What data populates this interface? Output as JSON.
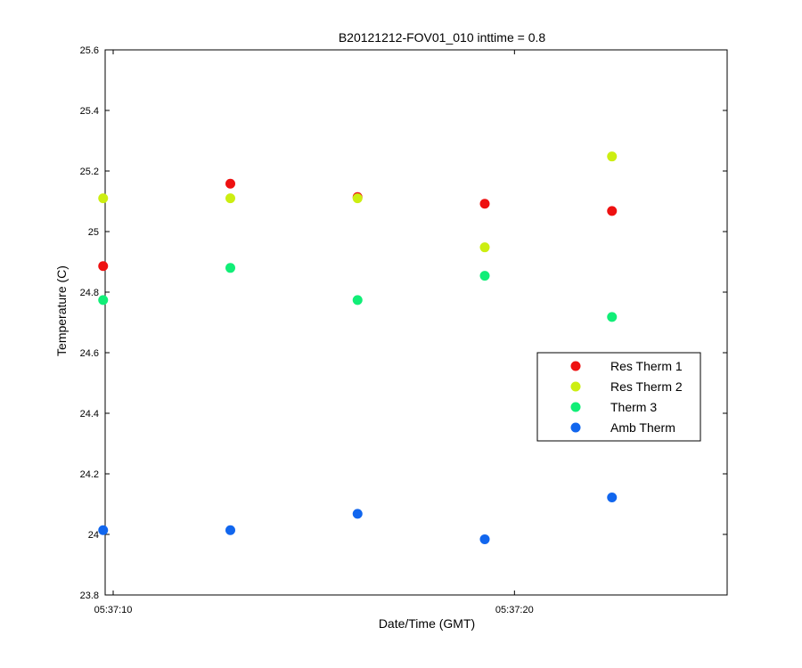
{
  "chart_data": {
    "type": "scatter",
    "title": "B20121212-FOV01_010 inttime = 0.8",
    "xlabel": "Date/Time (GMT)",
    "ylabel": "Temperature (C)",
    "x_unit": "seconds after 05:37:00",
    "xlim": [
      9.8,
      25.3
    ],
    "ylim": [
      23.8,
      25.6
    ],
    "x_ticks": [
      {
        "value": 10,
        "label": "05:37:10"
      },
      {
        "value": 20,
        "label": "05:37:20"
      }
    ],
    "y_ticks": [
      {
        "value": 23.8,
        "label": "23.8"
      },
      {
        "value": 24.0,
        "label": "24"
      },
      {
        "value": 24.2,
        "label": "24.2"
      },
      {
        "value": 24.4,
        "label": "24.4"
      },
      {
        "value": 24.6,
        "label": "24.6"
      },
      {
        "value": 24.8,
        "label": "24.8"
      },
      {
        "value": 25.0,
        "label": "25"
      },
      {
        "value": 25.2,
        "label": "25.2"
      },
      {
        "value": 25.4,
        "label": "25.4"
      },
      {
        "value": 25.6,
        "label": "25.6"
      }
    ],
    "grid": false,
    "legend_position": "right",
    "x": [
      9.75,
      12.92,
      16.09,
      19.26,
      22.43
    ],
    "series": [
      {
        "name": "Res Therm 1",
        "color": "#ee1111",
        "values": [
          24.886,
          25.158,
          25.114,
          25.092,
          25.068
        ]
      },
      {
        "name": "Res Therm 2",
        "color": "#ccee11",
        "values": [
          25.11,
          25.11,
          25.11,
          24.948,
          25.248
        ]
      },
      {
        "name": "Therm 3",
        "color": "#11ee77",
        "values": [
          24.774,
          24.88,
          24.774,
          24.854,
          24.718
        ]
      },
      {
        "name": "Amb Therm",
        "color": "#1166ee",
        "values": [
          24.014,
          24.014,
          24.068,
          23.984,
          24.122
        ]
      }
    ]
  }
}
